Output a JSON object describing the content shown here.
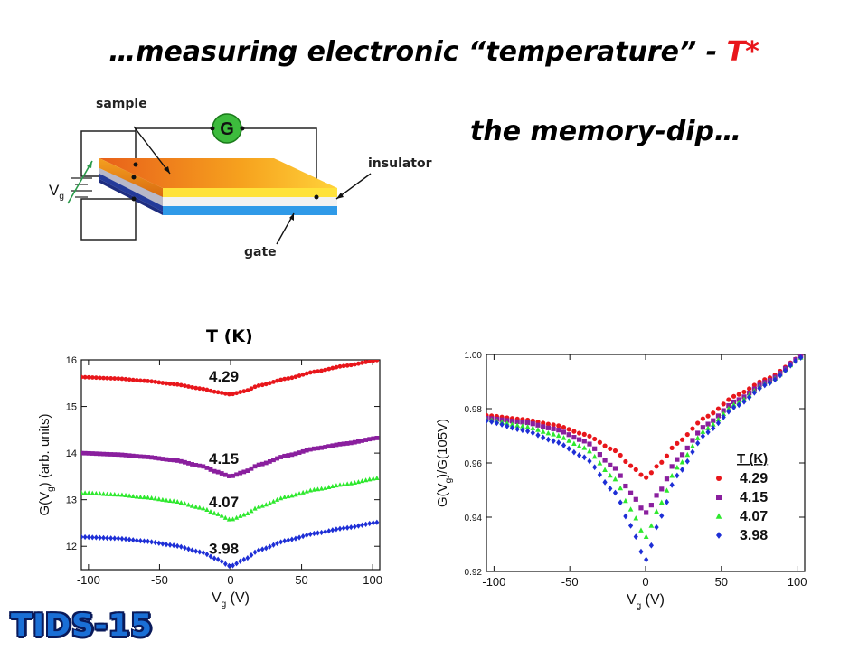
{
  "slide": {
    "title_main": "…measuring electronic “temperature” - ",
    "title_accent": "T*",
    "subtitle": "the memory-dip…",
    "badge": "TIDS-15"
  },
  "diagram": {
    "sample_label": "sample",
    "insulator_label": "insulator",
    "gate_label": "gate",
    "meter_label": "G",
    "source_label": "V",
    "source_sub": "g"
  },
  "colors": {
    "accent": "#e8161b",
    "s429": "#e8161b",
    "s415": "#8a1f9e",
    "s407": "#2ee82e",
    "s398": "#1e2fd6"
  },
  "chart_data": [
    {
      "type": "scatter",
      "title": "",
      "legend_title": "T (K)",
      "xlabel_main": "V",
      "xlabel_sub": "g",
      "xlabel_unit": " (V)",
      "ylabel_main": "G(V",
      "ylabel_sub": "g",
      "ylabel_unit": ") (arb. units)",
      "xlim": [
        -105,
        105
      ],
      "ylim": [
        11.5,
        16.0
      ],
      "xticks": [
        -100,
        -50,
        0,
        50,
        100
      ],
      "yticks": [
        12,
        13,
        14,
        15,
        16
      ],
      "grid": false,
      "series": [
        {
          "name": "4.29",
          "color": "#e8161b",
          "marker": "circle",
          "x": [
            -105,
            -80,
            -60,
            -40,
            -20,
            -10,
            0,
            10,
            20,
            40,
            60,
            80,
            105
          ],
          "y": [
            15.63,
            15.6,
            15.55,
            15.48,
            15.38,
            15.31,
            15.26,
            15.33,
            15.45,
            15.6,
            15.75,
            15.87,
            16.0
          ]
        },
        {
          "name": "4.15",
          "color": "#8a1f9e",
          "marker": "square",
          "x": [
            -105,
            -80,
            -60,
            -40,
            -20,
            -10,
            0,
            10,
            20,
            40,
            60,
            80,
            105
          ],
          "y": [
            14.0,
            13.97,
            13.92,
            13.85,
            13.72,
            13.6,
            13.5,
            13.6,
            13.75,
            13.95,
            14.1,
            14.2,
            14.33
          ]
        },
        {
          "name": "4.07",
          "color": "#2ee82e",
          "marker": "triangle",
          "x": [
            -105,
            -80,
            -60,
            -40,
            -20,
            -10,
            0,
            10,
            20,
            40,
            60,
            80,
            105
          ],
          "y": [
            13.15,
            13.11,
            13.05,
            12.97,
            12.82,
            12.7,
            12.57,
            12.68,
            12.85,
            13.07,
            13.22,
            13.33,
            13.47
          ]
        },
        {
          "name": "3.98",
          "color": "#1e2fd6",
          "marker": "diamond",
          "x": [
            -105,
            -80,
            -60,
            -40,
            -20,
            -10,
            0,
            10,
            20,
            40,
            60,
            80,
            105
          ],
          "y": [
            12.2,
            12.17,
            12.11,
            12.02,
            11.87,
            11.73,
            11.57,
            11.72,
            11.92,
            12.13,
            12.28,
            12.39,
            12.52
          ]
        }
      ]
    },
    {
      "type": "scatter",
      "title": "",
      "legend_title": "T (K)",
      "legend_position": "right",
      "xlabel_main": "V",
      "xlabel_sub": "g",
      "xlabel_unit": " (V)",
      "ylabel_main": "G(V",
      "ylabel_sub": "g",
      "ylabel_unit": ")/G(105V)",
      "xlim": [
        -105,
        105
      ],
      "ylim": [
        0.92,
        1.0
      ],
      "xticks": [
        -100,
        -50,
        0,
        50,
        100
      ],
      "yticks": [
        0.92,
        0.94,
        0.96,
        0.98,
        1.0
      ],
      "ytick_labels": [
        "0.92",
        "0.94",
        "0.96",
        "0.98",
        "1.00"
      ],
      "grid": false,
      "series": [
        {
          "name": "4.29",
          "color": "#e8161b",
          "marker": "circle",
          "x": [
            -105,
            -80,
            -60,
            -40,
            -20,
            -10,
            0,
            10,
            20,
            40,
            60,
            80,
            105
          ],
          "y": [
            0.9775,
            0.976,
            0.974,
            0.9705,
            0.9645,
            0.959,
            0.9545,
            0.96,
            0.967,
            0.977,
            0.985,
            0.991,
            1.0
          ]
        },
        {
          "name": "4.15",
          "color": "#8a1f9e",
          "marker": "square",
          "x": [
            -105,
            -80,
            -60,
            -40,
            -20,
            -10,
            0,
            10,
            20,
            40,
            60,
            80,
            105
          ],
          "y": [
            0.9765,
            0.975,
            0.9725,
            0.968,
            0.958,
            0.949,
            0.9415,
            0.95,
            0.961,
            0.974,
            0.983,
            0.99,
            1.0
          ]
        },
        {
          "name": "4.07",
          "color": "#2ee82e",
          "marker": "triangle",
          "x": [
            -105,
            -80,
            -60,
            -40,
            -20,
            -10,
            0,
            10,
            20,
            40,
            60,
            80,
            105
          ],
          "y": [
            0.976,
            0.9735,
            0.9705,
            0.9655,
            0.954,
            0.943,
            0.9325,
            0.945,
            0.958,
            0.9725,
            0.982,
            0.9895,
            0.9995
          ]
        },
        {
          "name": "3.98",
          "color": "#1e2fd6",
          "marker": "diamond",
          "x": [
            -105,
            -80,
            -60,
            -40,
            -20,
            -10,
            0,
            10,
            20,
            40,
            60,
            80,
            105
          ],
          "y": [
            0.9755,
            0.972,
            0.968,
            0.962,
            0.949,
            0.937,
            0.924,
            0.94,
            0.955,
            0.971,
            0.981,
            0.989,
            0.9995
          ]
        }
      ]
    }
  ]
}
